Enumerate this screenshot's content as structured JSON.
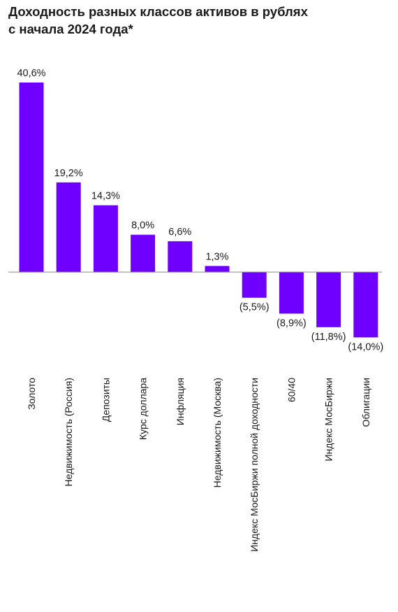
{
  "title": {
    "line1": "Доходность разных классов активов в рублях",
    "line2": "с начала 2024 года*"
  },
  "colors": {
    "bar": "#6f00ff",
    "axis": "#888888",
    "text": "#1a1a1a"
  },
  "chart_data": {
    "type": "bar",
    "categories": [
      "Золото",
      "Недвижимость (Россия)",
      "Депозиты",
      "Курс доллара",
      "Инфляция",
      "Недвижимость (Москва)",
      "Индекс МосБиржи полной доходности",
      "60/40",
      "Индекс МосБиржи",
      "Облигации"
    ],
    "values": [
      40.6,
      19.2,
      14.3,
      8.0,
      6.6,
      1.3,
      -5.5,
      -8.9,
      -11.8,
      -14.0
    ],
    "value_labels": [
      "40,6%",
      "19,2%",
      "14,3%",
      "8,0%",
      "6,6%",
      "1,3%",
      "(5,5%)",
      "(8,9%)",
      "(11,8%)",
      "(14,0%)"
    ],
    "legend": "none",
    "grid": false
  }
}
